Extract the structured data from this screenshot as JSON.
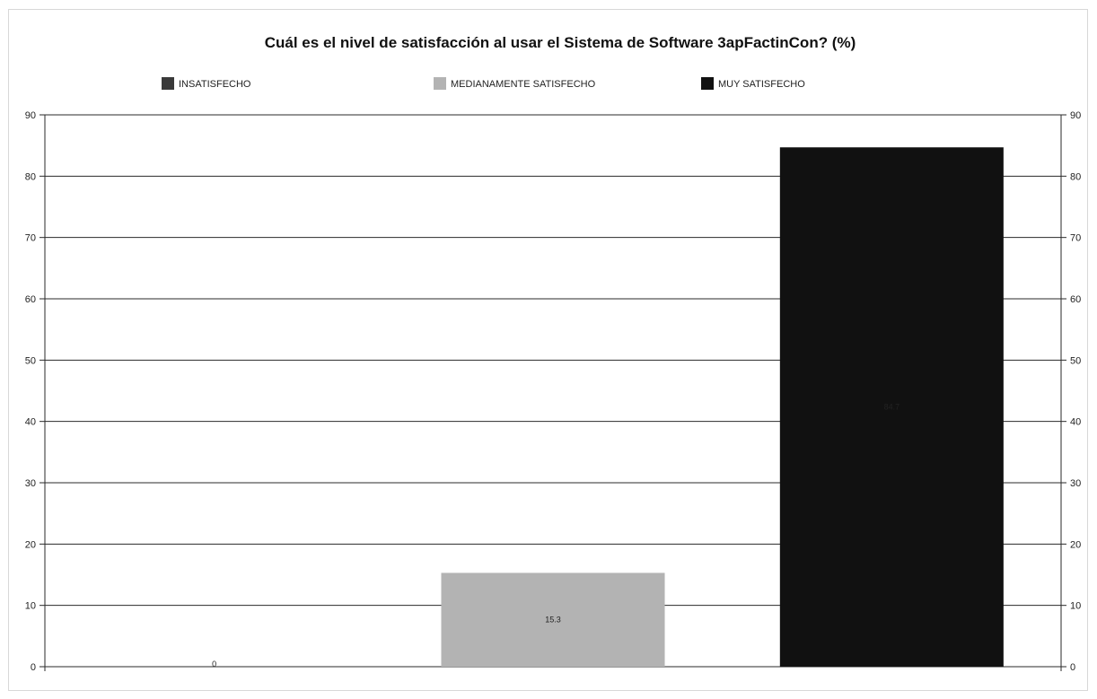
{
  "chart_data": {
    "type": "bar",
    "title": "Cuál es el nivel de satisfacción al usar el Sistema de Software 3apFactinCon? (%)",
    "categories": [
      "INSATISFECHO",
      "MEDIANAMENTE SATISFECHO",
      "MUY SATISFECHO"
    ],
    "values": [
      0,
      15.3,
      84.7
    ],
    "data_labels": [
      "0",
      "15.3",
      "84.7"
    ],
    "colors": [
      "#3a3a3a",
      "#b3b3b3",
      "#111111"
    ],
    "ylim": [
      0,
      90
    ],
    "yticks": [
      "0",
      "10",
      "20",
      "30",
      "40",
      "50",
      "60",
      "70",
      "80",
      "90"
    ],
    "grid": true,
    "legend_position": "top",
    "xlabel": "",
    "ylabel": ""
  }
}
